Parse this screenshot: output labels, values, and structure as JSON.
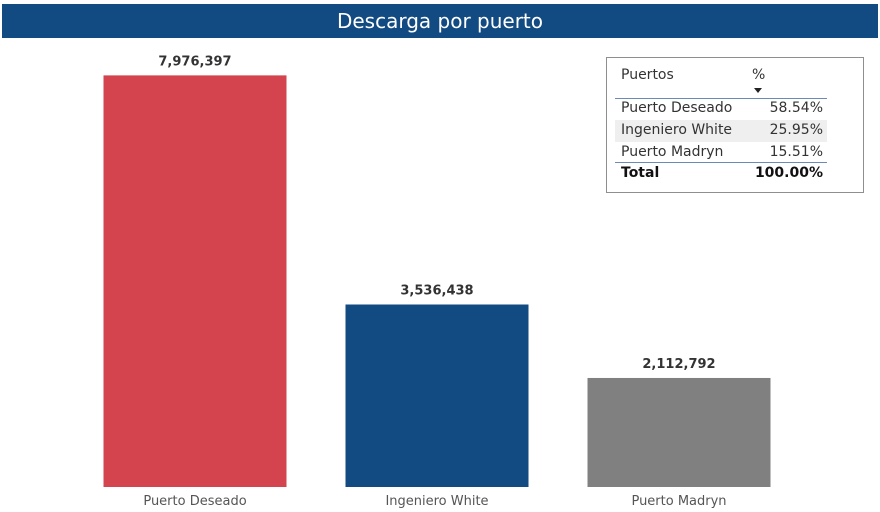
{
  "chart_data": {
    "type": "bar",
    "title": "Descarga por puerto",
    "categories": [
      "Puerto Deseado",
      "Ingeniero White",
      "Puerto Madryn"
    ],
    "values": [
      7976397,
      3536438,
      2112792
    ],
    "value_labels": [
      "7,976,397",
      "3,536,438",
      "2,112,792"
    ],
    "colors": [
      "#d4444e",
      "#124a82",
      "#808080"
    ],
    "ylim": [
      0,
      8100000
    ],
    "xlabel": "",
    "ylabel": "",
    "grid": false
  },
  "table": {
    "headers": {
      "puertos": "Puertos",
      "pct": "%"
    },
    "rows": [
      {
        "puerto": "Puerto Deseado",
        "pct": "58.54%"
      },
      {
        "puerto": "Ingeniero White",
        "pct": "25.95%"
      },
      {
        "puerto": "Puerto Madryn",
        "pct": "15.51%"
      }
    ],
    "total": {
      "label": "Total",
      "pct": "100.00%"
    }
  }
}
